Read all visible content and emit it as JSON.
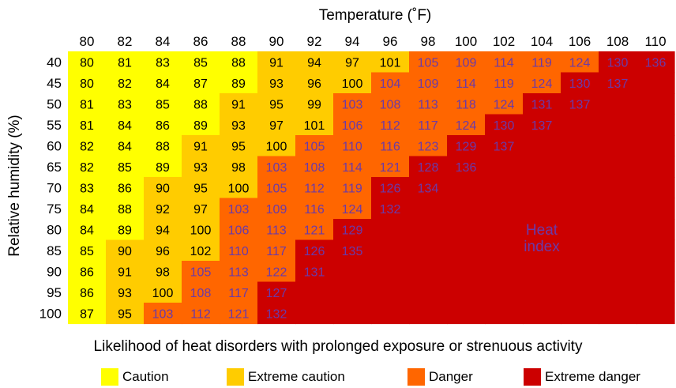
{
  "chart_data": {
    "type": "heatmap",
    "title": "Temperature (˚F)",
    "xlabel": "Temperature (˚F)",
    "ylabel": "Relative humidity (%)",
    "x": [
      80,
      82,
      84,
      86,
      88,
      90,
      92,
      94,
      96,
      98,
      100,
      102,
      104,
      106,
      108,
      110
    ],
    "y": [
      40,
      45,
      50,
      55,
      60,
      65,
      70,
      75,
      80,
      85,
      90,
      95,
      100
    ],
    "values": [
      [
        80,
        81,
        83,
        85,
        88,
        91,
        94,
        97,
        101,
        105,
        109,
        114,
        119,
        124,
        130,
        136
      ],
      [
        80,
        82,
        84,
        87,
        89,
        93,
        96,
        100,
        104,
        109,
        114,
        119,
        124,
        130,
        137,
        null
      ],
      [
        81,
        83,
        85,
        88,
        91,
        95,
        99,
        103,
        108,
        113,
        118,
        124,
        131,
        137,
        null,
        null
      ],
      [
        81,
        84,
        86,
        89,
        93,
        97,
        101,
        106,
        112,
        117,
        124,
        130,
        137,
        null,
        null,
        null
      ],
      [
        82,
        84,
        88,
        91,
        95,
        100,
        105,
        110,
        116,
        123,
        129,
        137,
        null,
        null,
        null,
        null
      ],
      [
        82,
        85,
        89,
        93,
        98,
        103,
        108,
        114,
        121,
        128,
        136,
        null,
        null,
        null,
        null,
        null
      ],
      [
        83,
        86,
        90,
        95,
        100,
        105,
        112,
        119,
        126,
        134,
        null,
        null,
        null,
        null,
        null,
        null
      ],
      [
        84,
        88,
        92,
        97,
        103,
        109,
        116,
        124,
        132,
        null,
        null,
        null,
        null,
        null,
        null,
        null
      ],
      [
        84,
        89,
        94,
        100,
        106,
        113,
        121,
        129,
        null,
        null,
        null,
        null,
        null,
        null,
        null,
        null
      ],
      [
        85,
        90,
        96,
        102,
        110,
        117,
        126,
        135,
        null,
        null,
        null,
        null,
        null,
        null,
        null,
        null
      ],
      [
        86,
        91,
        98,
        105,
        113,
        122,
        131,
        null,
        null,
        null,
        null,
        null,
        null,
        null,
        null,
        null
      ],
      [
        86,
        93,
        100,
        108,
        117,
        127,
        null,
        null,
        null,
        null,
        null,
        null,
        null,
        null,
        null,
        null
      ],
      [
        87,
        95,
        103,
        112,
        121,
        132,
        null,
        null,
        null,
        null,
        null,
        null,
        null,
        null,
        null,
        null
      ]
    ],
    "annotation": "Heat index",
    "legend_title": "Likelihood of heat disorders with prolonged exposure or strenuous activity",
    "legend": [
      {
        "label": "Caution",
        "color": "#ffff00"
      },
      {
        "label": "Extreme caution",
        "color": "#ffcc00"
      },
      {
        "label": "Danger",
        "color": "#ff6600"
      },
      {
        "label": "Extreme danger",
        "color": "#cc0000"
      }
    ],
    "category_thresholds": [
      90,
      103,
      125
    ],
    "text_colors": {
      "dark": "#000000",
      "light": "#6a3aa8"
    },
    "legend_placement": "bottom",
    "grid": false
  }
}
